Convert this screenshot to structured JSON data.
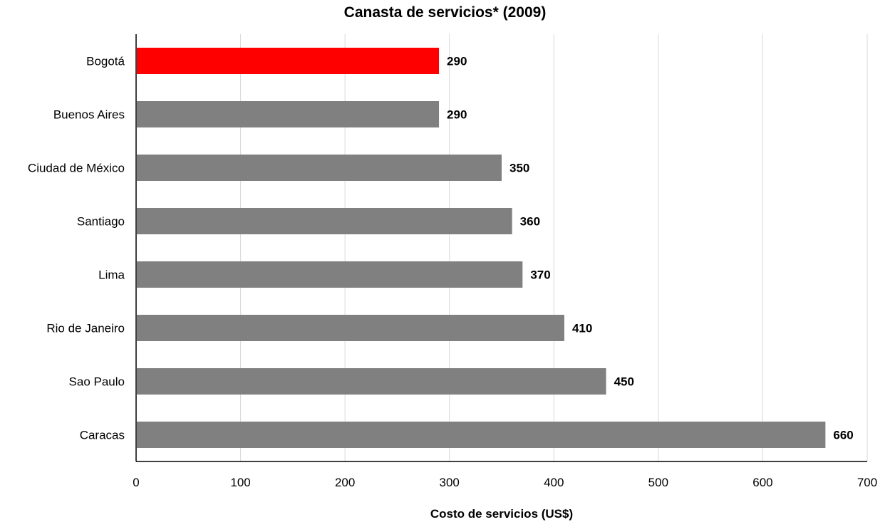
{
  "chart_data": {
    "type": "bar",
    "orientation": "horizontal",
    "title": "Canasta de servicios* (2009)",
    "xlabel": "Costo de servicios (US$)",
    "ylabel": "",
    "categories": [
      "Bogotá",
      "Buenos Aires",
      "Ciudad de México",
      "Santiago",
      "Lima",
      "Rio de Janeiro",
      "Sao Paulo",
      "Caracas"
    ],
    "values": [
      290,
      290,
      350,
      360,
      370,
      410,
      450,
      660
    ],
    "xlim": [
      0,
      700
    ],
    "xticks": [
      0,
      100,
      200,
      300,
      400,
      500,
      600,
      700
    ],
    "grid": true,
    "legend": "none",
    "colors": {
      "default_bar": "#808080",
      "highlight_bar": "#ff0000",
      "gridline": "#d9d9d9",
      "axis": "#000000"
    },
    "highlight_index": 0
  }
}
